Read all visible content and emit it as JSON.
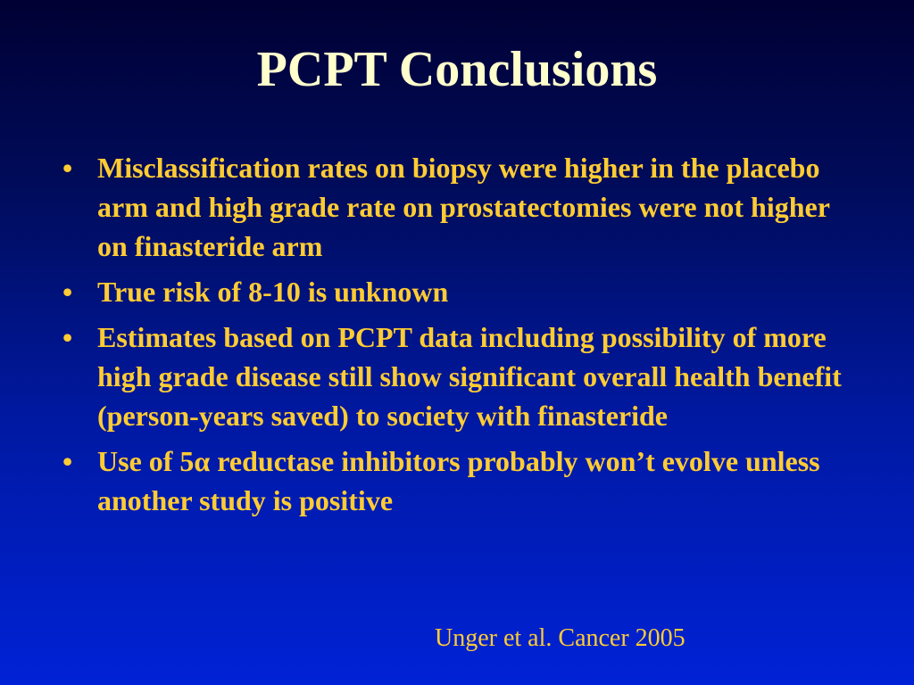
{
  "title": "PCPT Conclusions",
  "bullets": [
    "Misclassification rates on biopsy were higher in the placebo arm and high grade rate on prostatectomies were not higher on finasteride arm",
    "True risk of 8-10 is unknown",
    "Estimates based on PCPT data including possibility of more high grade disease still show significant overall health benefit (person-years saved) to society with finasteride",
    "Use of 5α reductase inhibitors probably won’t evolve unless another study is positive"
  ],
  "bullet_symbol": "•",
  "citation": "Unger et al. Cancer 2005",
  "colors": {
    "background_top": "#000033",
    "background_bottom": "#0022d6",
    "title": "#ffffcc",
    "body_text": "#ffcc33"
  }
}
